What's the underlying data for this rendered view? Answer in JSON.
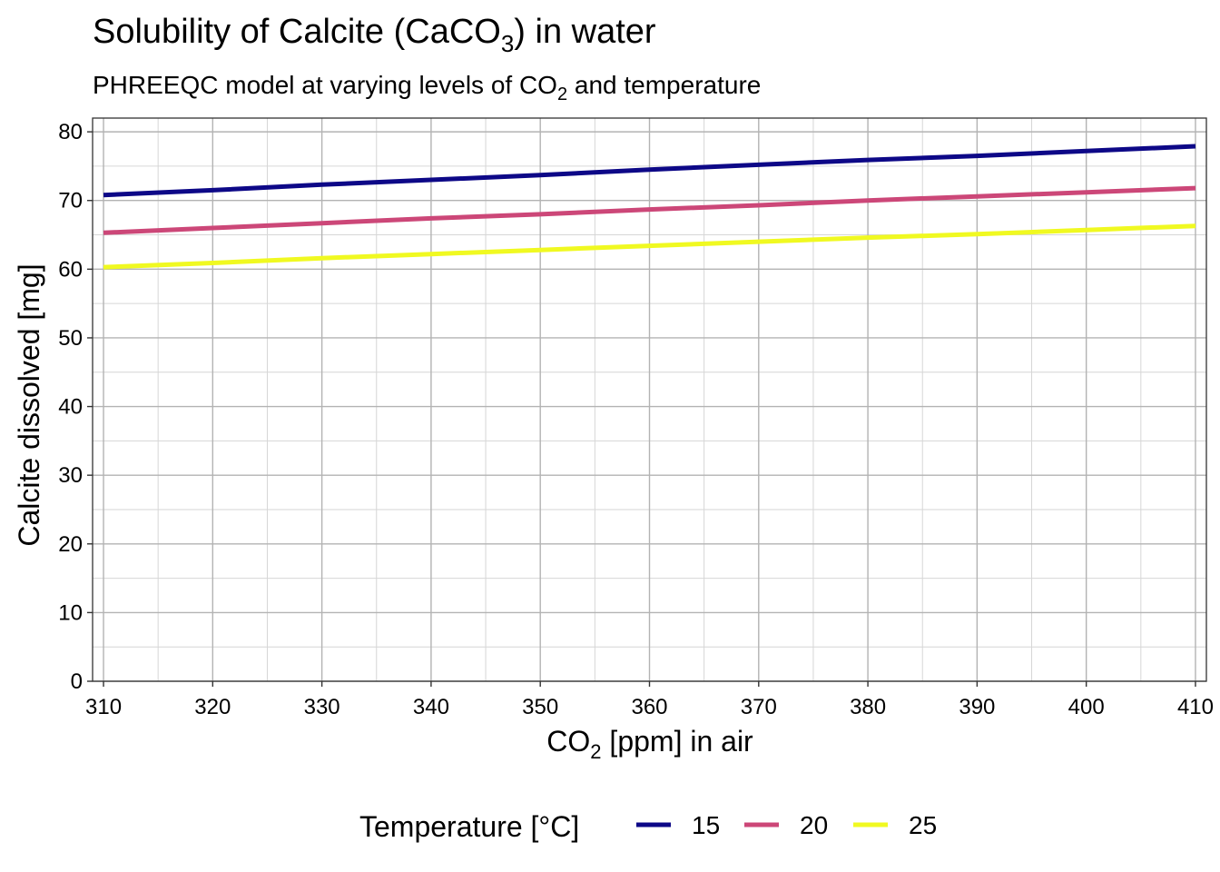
{
  "chart_data": {
    "type": "line",
    "title": {
      "pre": "Solubility of Calcite (CaCO",
      "sub": "3",
      "post": ") in water"
    },
    "subtitle": {
      "pre": "PHREEQC model at varying levels of CO",
      "sub": "2",
      "post": " and temperature"
    },
    "xlabel": {
      "pre": "CO",
      "sub": "2",
      "post": " [ppm] in air"
    },
    "ylabel": "Calcite dissolved [mg]",
    "xlim": [
      309,
      411
    ],
    "ylim": [
      0,
      82
    ],
    "x_ticks": [
      310,
      320,
      330,
      340,
      350,
      360,
      370,
      380,
      390,
      400,
      410
    ],
    "x_tick_labels": [
      "310",
      "320",
      "330",
      "340",
      "350",
      "360",
      "370",
      "380",
      "390",
      "400",
      "410"
    ],
    "y_ticks": [
      0,
      10,
      20,
      30,
      40,
      50,
      60,
      70,
      80
    ],
    "y_tick_labels": [
      "0",
      "10",
      "20",
      "30",
      "40",
      "50",
      "60",
      "70",
      "80"
    ],
    "grid": true,
    "legend": {
      "title": "Temperature [°C]",
      "position": "bottom"
    },
    "x": [
      310,
      320,
      330,
      340,
      350,
      360,
      370,
      380,
      390,
      400,
      410
    ],
    "series": [
      {
        "name": "15",
        "color": "#0d0887",
        "values": [
          70.8,
          71.5,
          72.3,
          73.0,
          73.7,
          74.5,
          75.2,
          75.9,
          76.5,
          77.2,
          77.9
        ]
      },
      {
        "name": "20",
        "color": "#cc4778",
        "values": [
          65.3,
          66.0,
          66.7,
          67.4,
          68.0,
          68.7,
          69.3,
          70.0,
          70.6,
          71.2,
          71.8
        ]
      },
      {
        "name": "25",
        "color": "#f0f921",
        "values": [
          60.3,
          60.9,
          61.6,
          62.2,
          62.8,
          63.4,
          64.0,
          64.6,
          65.1,
          65.7,
          66.3
        ]
      }
    ]
  }
}
